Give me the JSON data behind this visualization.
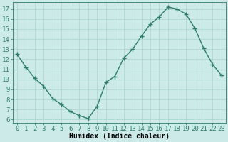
{
  "x": [
    0,
    1,
    2,
    3,
    4,
    5,
    6,
    7,
    8,
    9,
    10,
    11,
    12,
    13,
    14,
    15,
    16,
    17,
    18,
    19,
    20,
    21,
    22,
    23
  ],
  "y": [
    12.5,
    11.2,
    10.1,
    9.3,
    8.1,
    7.5,
    6.8,
    6.4,
    6.1,
    7.3,
    9.7,
    10.3,
    12.1,
    13.0,
    14.3,
    15.5,
    16.2,
    17.2,
    17.0,
    16.5,
    15.1,
    13.1,
    11.5,
    10.4
  ],
  "line_color": "#2e7d6e",
  "marker": "+",
  "marker_size": 4,
  "bg_color": "#cceae7",
  "grid_major_color": "#aad4d0",
  "grid_minor_color": "#bde0dc",
  "xlabel": "Humidex (Indice chaleur)",
  "ylabel_ticks": [
    6,
    7,
    8,
    9,
    10,
    11,
    12,
    13,
    14,
    15,
    16,
    17
  ],
  "xticks": [
    0,
    1,
    2,
    3,
    4,
    5,
    6,
    7,
    8,
    9,
    10,
    11,
    12,
    13,
    14,
    15,
    16,
    17,
    18,
    19,
    20,
    21,
    22,
    23
  ],
  "ylim": [
    5.7,
    17.7
  ],
  "xlim": [
    -0.5,
    23.5
  ],
  "xlabel_fontsize": 7,
  "tick_fontsize": 6.5,
  "lw": 1.0
}
